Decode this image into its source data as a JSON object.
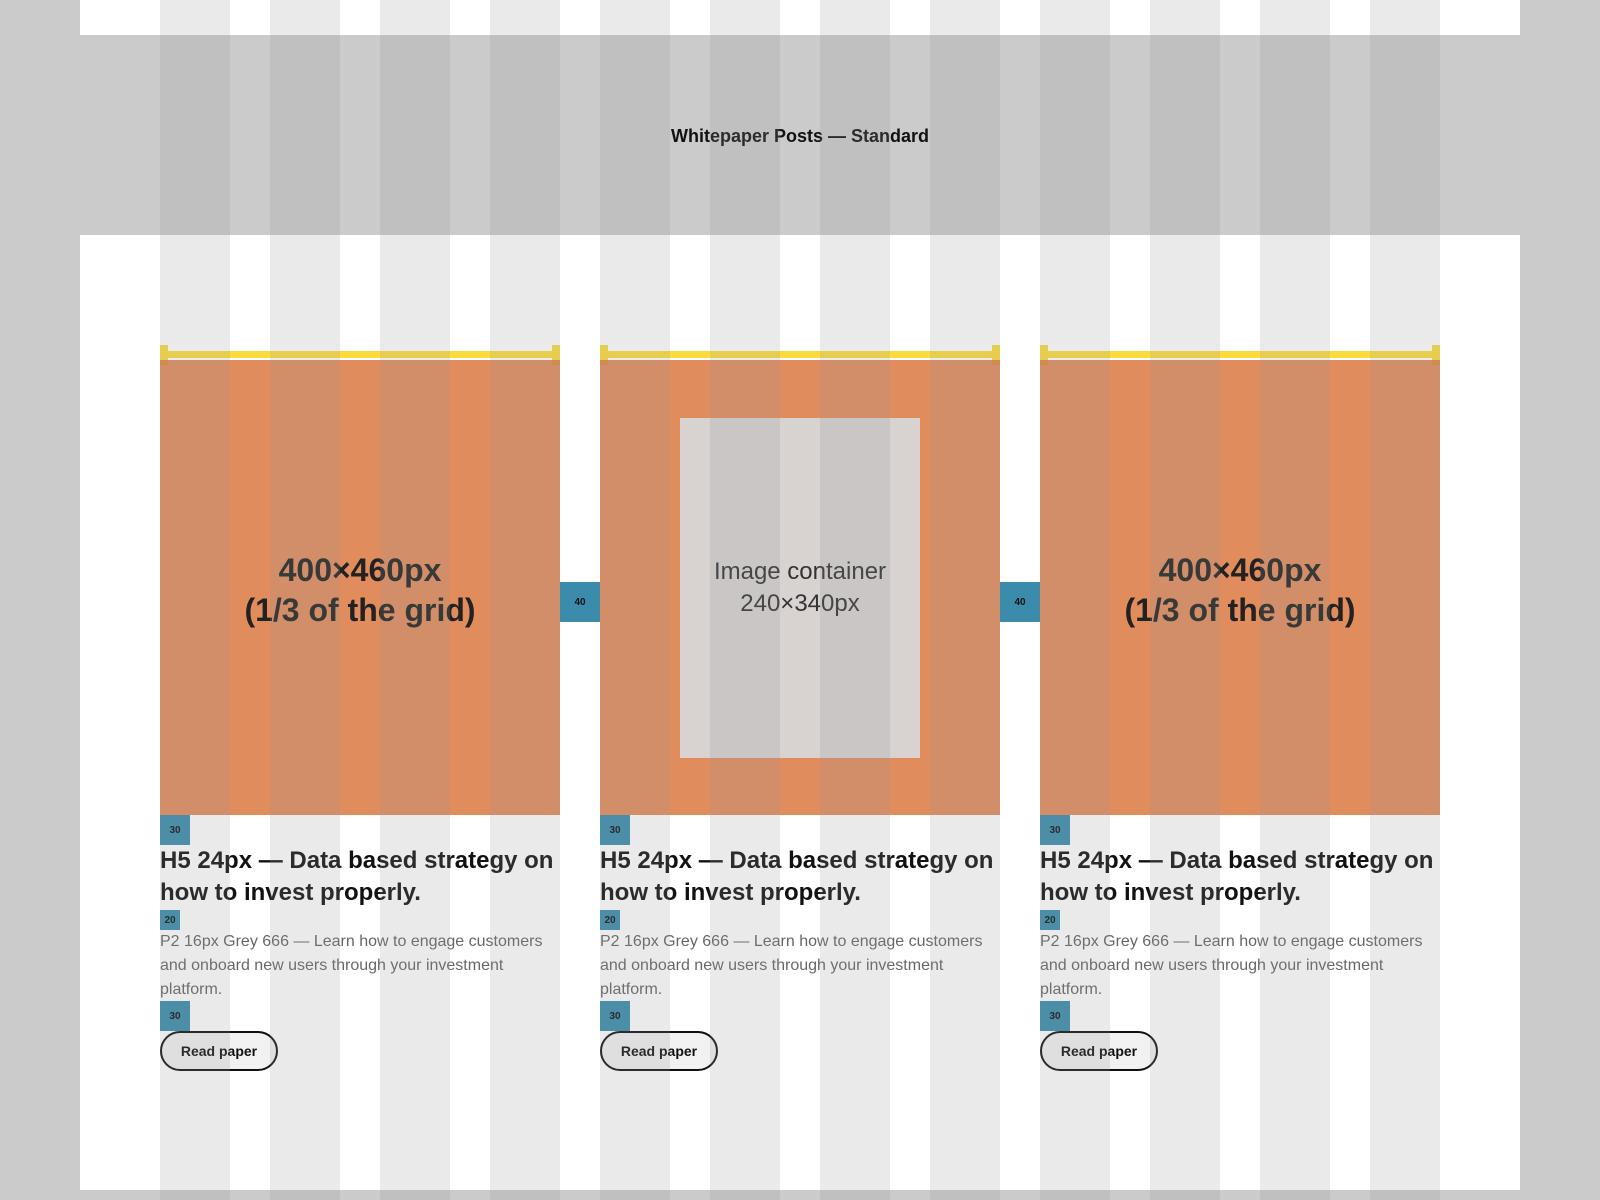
{
  "page": {
    "title": "Whitepaper Posts — Standard"
  },
  "cards": [
    {
      "media_label_line1": "400×460px",
      "media_label_line2": "(1/3 of the grid)",
      "spacer_top": "30",
      "title": "H5 24px — Data based strategy on how to invest properly.",
      "spacer_mid": "20",
      "description": "P2 16px Grey 666 — Learn how to engage customers and onboard new users through your investment platform.",
      "spacer_bottom": "30",
      "button_label": "Read paper"
    },
    {
      "image_label_line1": "Image container",
      "image_label_line2": "240×340px",
      "spacer_top": "30",
      "title": "H5 24px — Data based strategy on how to invest properly.",
      "spacer_mid": "20",
      "description": "P2 16px Grey 666 — Learn how to engage customers and onboard new users through your investment platform.",
      "spacer_bottom": "30",
      "button_label": "Read paper"
    },
    {
      "media_label_line1": "400×460px",
      "media_label_line2": "(1/3 of the grid)",
      "spacer_top": "30",
      "title": "H5 24px — Data based strategy on how to invest properly.",
      "spacer_mid": "20",
      "description": "P2 16px Grey 666 — Learn how to engage customers and onboard new users through your investment platform.",
      "spacer_bottom": "30",
      "button_label": "Read paper"
    }
  ],
  "gutters": [
    "40",
    "40"
  ],
  "colors": {
    "background": "#cbcbcb",
    "artboard": "#ffffff",
    "media": "#dc7841",
    "ruler": "#fbdb3c",
    "spacer": "#3a8bac",
    "description_text": "#666666"
  }
}
